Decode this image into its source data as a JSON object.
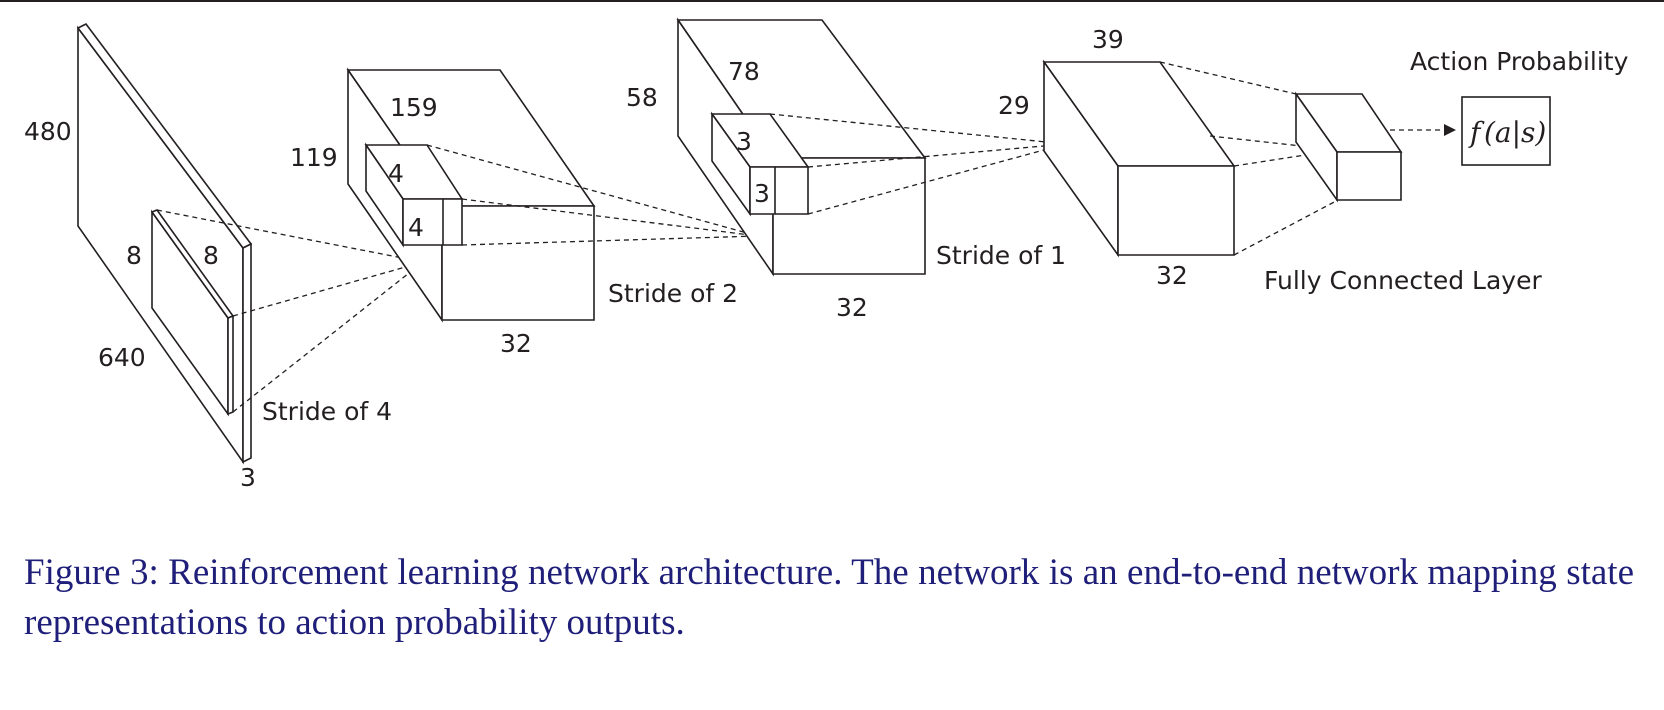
{
  "diagram": {
    "input": {
      "height": "480",
      "width": "640",
      "depth": "3"
    },
    "kernel1": {
      "h": "8",
      "w": "8",
      "stride": "Stride of 4"
    },
    "conv1": {
      "height": "119",
      "width": "159",
      "depth": "32"
    },
    "kernel2": {
      "h": "4",
      "w": "4",
      "stride": "Stride of 2"
    },
    "conv2": {
      "height": "58",
      "width": "78",
      "depth": "32"
    },
    "kernel3": {
      "h": "3",
      "w": "3",
      "stride": "Stride of 1"
    },
    "conv3": {
      "height": "29",
      "width": "39",
      "depth": "32"
    },
    "fc": {
      "label": "Fully Connected Layer"
    },
    "output": {
      "title": "Action Probability",
      "fn_f": "f",
      "fn_args": "(a|s)"
    }
  },
  "caption": "Figure 3: Reinforcement learning network architecture. The network is an end-to-end network mapping state representations to action probability outputs."
}
